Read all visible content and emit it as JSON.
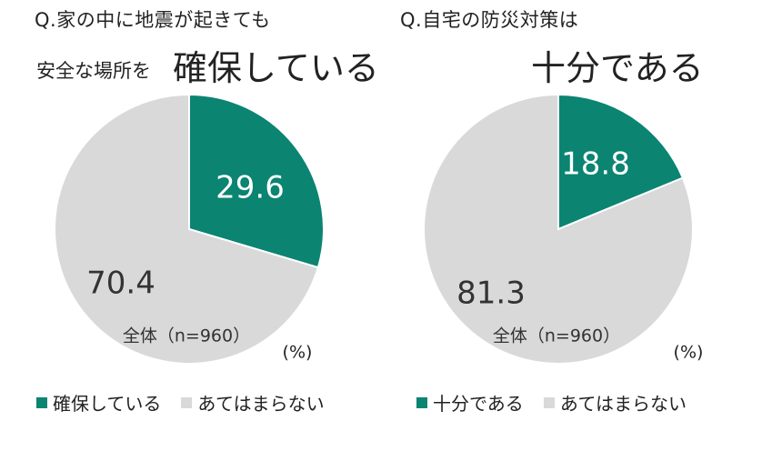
{
  "chart_data": [
    {
      "type": "pie",
      "title_line1": "Q.家の中に地震が起きても",
      "title_line2_small": "安全な場所を",
      "title_line2_big": "確保している",
      "note": "全体（n=960）",
      "unit": "(%)",
      "slices": [
        {
          "label": "確保している",
          "value": 29.6,
          "value_label": "29.6",
          "color": "#0b8472"
        },
        {
          "label": "あてはまらない",
          "value": 70.4,
          "value_label": "70.4",
          "color": "#d9d9d9"
        }
      ],
      "legend": [
        "確保している",
        "あてはまらない"
      ]
    },
    {
      "type": "pie",
      "title_line1": "Q.自宅の防災対策は",
      "title_line2_big": "十分である",
      "note": "全体（n=960）",
      "unit": "(%)",
      "slices": [
        {
          "label": "十分である",
          "value": 18.8,
          "value_label": "18.8",
          "color": "#0b8472"
        },
        {
          "label": "あてはまらない",
          "value": 81.3,
          "value_label": "81.3",
          "color": "#d9d9d9"
        }
      ],
      "legend": [
        "十分である",
        "あてはまらない"
      ]
    }
  ]
}
